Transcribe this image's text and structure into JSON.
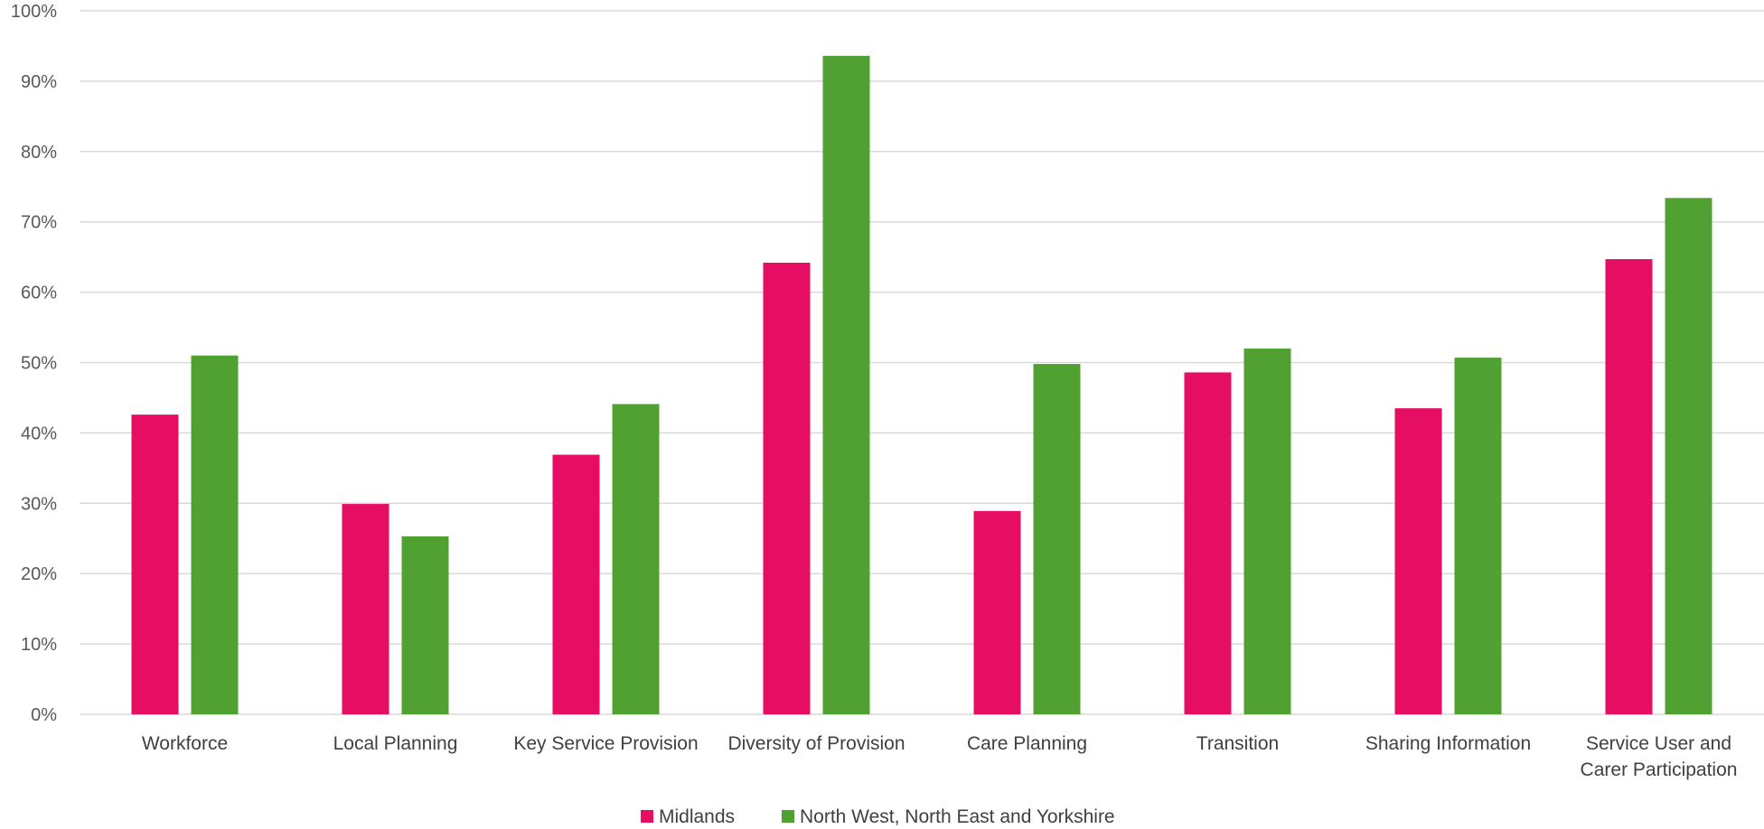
{
  "chart_data": {
    "type": "bar",
    "title": "",
    "xlabel": "",
    "ylabel": "",
    "ylim": [
      0,
      100
    ],
    "y_ticks": [
      "0%",
      "10%",
      "20%",
      "30%",
      "40%",
      "50%",
      "60%",
      "70%",
      "80%",
      "90%",
      "100%"
    ],
    "grid": true,
    "legend_position": "bottom",
    "categories": [
      "Workforce",
      "Local Planning",
      "Key Service Provision",
      "Diversity of Provision",
      "Care Planning",
      "Transition",
      "Sharing Information",
      "Service User and Carer Participation"
    ],
    "series": [
      {
        "name": "Midlands",
        "color": "#E60E63",
        "values": [
          42.6,
          29.9,
          36.9,
          64.2,
          28.9,
          48.6,
          43.5,
          64.7
        ]
      },
      {
        "name": "North West, North East and Yorkshire",
        "color": "#51A032",
        "values": [
          51.0,
          25.3,
          44.1,
          93.6,
          49.8,
          52.0,
          50.7,
          73.4
        ]
      }
    ]
  }
}
